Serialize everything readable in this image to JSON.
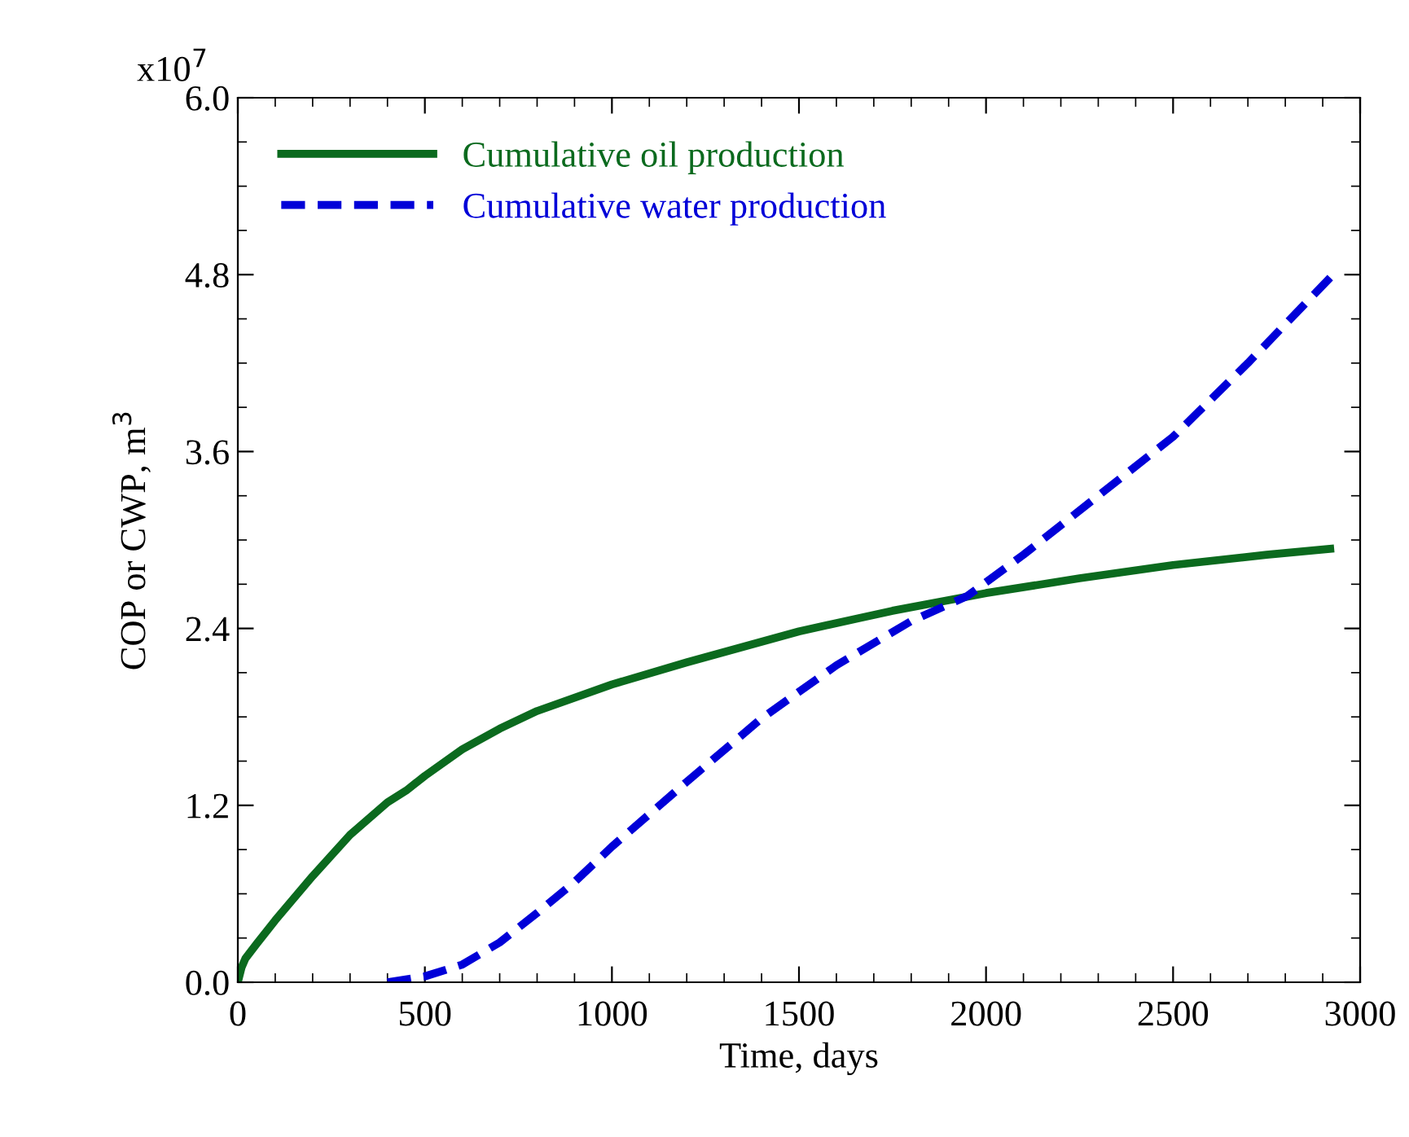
{
  "chart_data": {
    "type": "line",
    "xlabel": "Time, days",
    "ylabel": "COP or CWP, m$^{3}$",
    "annotations": [
      "x10$^{7}$"
    ],
    "xlim": [
      0,
      3000
    ],
    "xticks": [
      0,
      500,
      1000,
      1500,
      2000,
      2500,
      3000
    ],
    "ylim": [
      0,
      6.0
    ],
    "yticks": [
      {
        "value": 0,
        "label": "0.0"
      },
      {
        "value": 1.2,
        "label": "1.2"
      },
      {
        "value": 2.4,
        "label": "2.4"
      },
      {
        "value": 3.6,
        "label": "3.6"
      },
      {
        "value": 4.8,
        "label": "4.8"
      },
      {
        "value": 6.0,
        "label": "6.0"
      }
    ],
    "legend": "top left",
    "grid": false,
    "marker": "none",
    "series": [
      {
        "name": "Cumulative oil production",
        "color": "#0b6a1e",
        "line_style": "solid",
        "x": [
          0,
          10,
          20,
          50,
          100,
          200,
          300,
          400,
          450,
          500,
          600,
          700,
          800,
          1000,
          1200,
          1500,
          1750,
          2000,
          2250,
          2500,
          2750,
          2920
        ],
        "values": [
          0,
          0.1,
          0.16,
          0.26,
          0.42,
          0.72,
          1.0,
          1.22,
          1.3,
          1.4,
          1.58,
          1.72,
          1.84,
          2.02,
          2.17,
          2.38,
          2.52,
          2.64,
          2.74,
          2.83,
          2.9,
          2.94
        ]
      },
      {
        "name": "Cumulative water production",
        "color": "#0000d8",
        "line_style": "dashed",
        "x": [
          400,
          500,
          600,
          700,
          800,
          900,
          1000,
          1200,
          1400,
          1600,
          1800,
          1950,
          2100,
          2300,
          2500,
          2700,
          2920
        ],
        "values": [
          0,
          0.04,
          0.12,
          0.27,
          0.47,
          0.68,
          0.92,
          1.36,
          1.79,
          2.15,
          2.45,
          2.62,
          2.9,
          3.3,
          3.7,
          4.2,
          4.78
        ]
      }
    ]
  }
}
